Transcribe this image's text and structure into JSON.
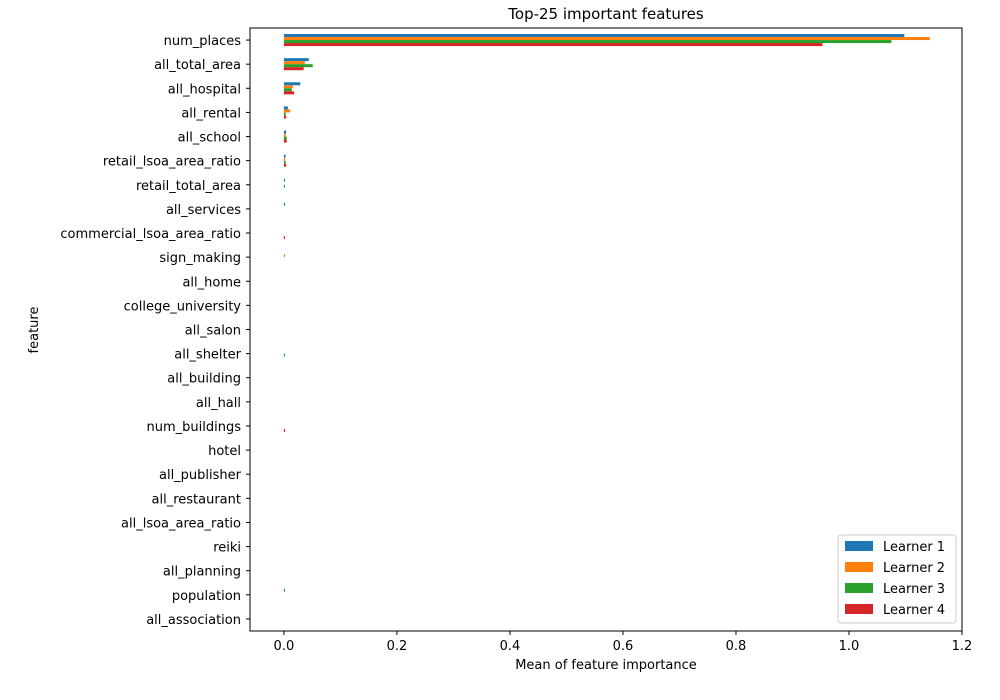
{
  "chart_data": {
    "type": "bar",
    "orientation": "horizontal",
    "title": "Top-25 important features",
    "xlabel": "Mean of feature importance",
    "ylabel": "feature",
    "xlim": [
      -0.06,
      1.2
    ],
    "xticks": [
      "0.0",
      "0.2",
      "0.4",
      "0.6",
      "0.8",
      "1.0",
      "1.2"
    ],
    "xtick_values": [
      0.0,
      0.2,
      0.4,
      0.6,
      0.8,
      1.0,
      1.2
    ],
    "grid": false,
    "legend_position": "lower-right",
    "categories": [
      "num_places",
      "all_total_area",
      "all_hospital",
      "all_rental",
      "all_school",
      "retail_lsoa_area_ratio",
      "retail_total_area",
      "all_services",
      "commercial_lsoa_area_ratio",
      "sign_making",
      "all_home",
      "college_university",
      "all_salon",
      "all_shelter",
      "all_building",
      "all_hall",
      "num_buildings",
      "hotel",
      "all_publisher",
      "all_restaurant",
      "all_lsoa_area_ratio",
      "reiki",
      "all_planning",
      "population",
      "all_association"
    ],
    "series": [
      {
        "name": "Learner 1",
        "color": "#1f77b4",
        "values": [
          1.098,
          0.044,
          0.029,
          0.007,
          0.004,
          0.003,
          0.002,
          0.002,
          0.0,
          0.0,
          0.0,
          0.0,
          0.0,
          0.0,
          0.0,
          0.0,
          0.0,
          0.0,
          0.0,
          0.0,
          0.0,
          0.0,
          0.0,
          0.002,
          0.0
        ]
      },
      {
        "name": "Learner 2",
        "color": "#ff7f0e",
        "values": [
          1.143,
          0.037,
          0.016,
          0.011,
          0.003,
          0.002,
          0.0,
          0.0,
          0.0,
          0.002,
          0.0,
          0.0,
          0.0,
          0.0,
          0.0,
          0.0,
          0.0,
          0.0,
          0.0,
          0.0,
          0.0,
          0.0,
          0.0,
          0.0,
          0.0
        ]
      },
      {
        "name": "Learner 3",
        "color": "#2ca02c",
        "values": [
          1.075,
          0.051,
          0.014,
          0.003,
          0.005,
          0.003,
          0.002,
          0.0,
          0.0,
          0.0,
          0.0,
          0.0,
          0.0,
          0.002,
          0.0,
          0.0,
          0.0,
          0.0,
          0.0,
          0.0,
          0.0,
          0.0,
          0.0,
          0.0,
          0.0
        ]
      },
      {
        "name": "Learner 4",
        "color": "#d62728",
        "values": [
          0.953,
          0.035,
          0.018,
          0.004,
          0.005,
          0.004,
          0.0,
          0.0,
          0.002,
          0.0,
          0.0,
          0.0,
          0.0,
          0.0,
          0.0,
          0.0,
          0.002,
          0.0,
          0.0,
          0.0,
          0.0,
          0.0,
          0.0,
          0.0,
          0.0
        ]
      }
    ]
  }
}
